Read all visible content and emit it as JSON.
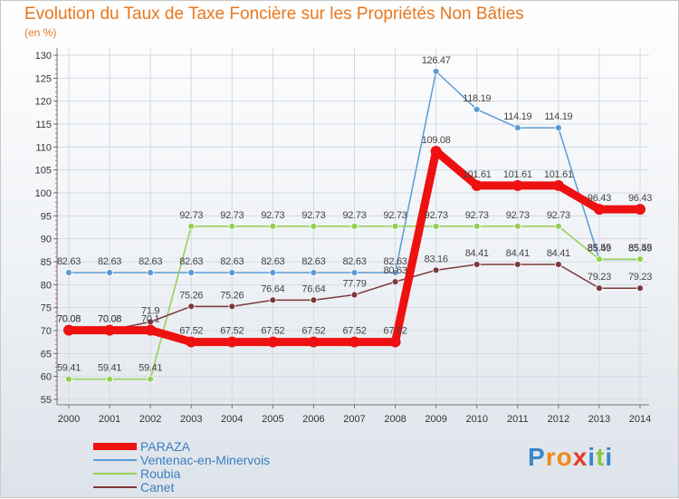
{
  "title": "Evolution du Taux de Taxe Foncière sur les Propriétés Non Bâties",
  "subtitle": "(en %)",
  "logo": {
    "letters": [
      "P",
      "r",
      "o",
      "x",
      "i",
      "t",
      "i"
    ],
    "colors": [
      "#3a86c8",
      "#f08a1c",
      "#f08a1c",
      "#e53a2b",
      "#3a86c8",
      "#8cc63f",
      "#3a86c8"
    ]
  },
  "chart_data": {
    "type": "line",
    "title": "Evolution du Taux de Taxe Foncière sur les Propriétés Non Bâties",
    "ylabel": "(en %)",
    "categories": [
      "2000",
      "2001",
      "2002",
      "2003",
      "2004",
      "2005",
      "2006",
      "2007",
      "2008",
      "2009",
      "2010",
      "2011",
      "2012",
      "2013",
      "2014"
    ],
    "ylim": [
      55,
      130
    ],
    "yticks": [
      55,
      60,
      65,
      70,
      75,
      80,
      85,
      90,
      95,
      100,
      105,
      110,
      115,
      120,
      125,
      130
    ],
    "series": [
      {
        "name": "PARAZA",
        "color": "#ee1111",
        "width": 9,
        "marker": 6,
        "values": [
          70.08,
          70.08,
          70.08,
          67.52,
          67.52,
          67.52,
          67.52,
          67.52,
          67.52,
          109.08,
          101.61,
          101.61,
          101.61,
          96.43,
          96.43
        ],
        "labels": [
          "70.08",
          "70.08",
          "70.1",
          "67.52",
          "67.52",
          "67.52",
          "67.52",
          "67.52",
          "67.52",
          "109.08",
          "101.61",
          "101.61",
          "101.61",
          "96.43",
          "96.43"
        ]
      },
      {
        "name": "Ventenac-en-Minervois",
        "color": "#5b9bd5",
        "width": 1.5,
        "marker": 3.5,
        "values": [
          82.63,
          82.63,
          82.63,
          82.63,
          82.63,
          82.63,
          82.63,
          82.63,
          82.63,
          126.47,
          118.19,
          114.19,
          114.19,
          85.49,
          85.49
        ],
        "labels": [
          "82.63",
          "82.63",
          "82.63",
          "82.63",
          "82.63",
          "82.63",
          "82.63",
          "82.63",
          "82.63",
          "126.47",
          "118.19",
          "114.19",
          "114.19",
          "85.49",
          "85.49"
        ]
      },
      {
        "name": "Roubia",
        "color": "#92d050",
        "width": 1.5,
        "marker": 3.5,
        "values": [
          59.41,
          59.41,
          59.41,
          92.73,
          92.73,
          92.73,
          92.73,
          92.73,
          92.73,
          92.73,
          92.73,
          92.73,
          92.73,
          85.55,
          85.55
        ],
        "labels": [
          "59.41",
          "59.41",
          "59.41",
          "92.73",
          "92.73",
          "92.73",
          "92.73",
          "92.73",
          "92.73",
          "92.73",
          "92.73",
          "92.73",
          "92.73",
          "85.55",
          "85.55"
        ]
      },
      {
        "name": "Canet",
        "color": "#7b3a3a",
        "width": 1.5,
        "marker": 3.5,
        "values": [
          70.08,
          70.08,
          71.9,
          75.26,
          75.26,
          76.64,
          76.64,
          77.79,
          80.63,
          83.16,
          84.41,
          84.41,
          84.41,
          79.23,
          79.23
        ],
        "labels": [
          "70.08",
          "70.08",
          "71.9",
          "75.26",
          "75.26",
          "76.64",
          "76.64",
          "77.79",
          "80.63",
          "83.16",
          "84.41",
          "84.41",
          "84.41",
          "79.23",
          "79.23"
        ]
      }
    ]
  }
}
